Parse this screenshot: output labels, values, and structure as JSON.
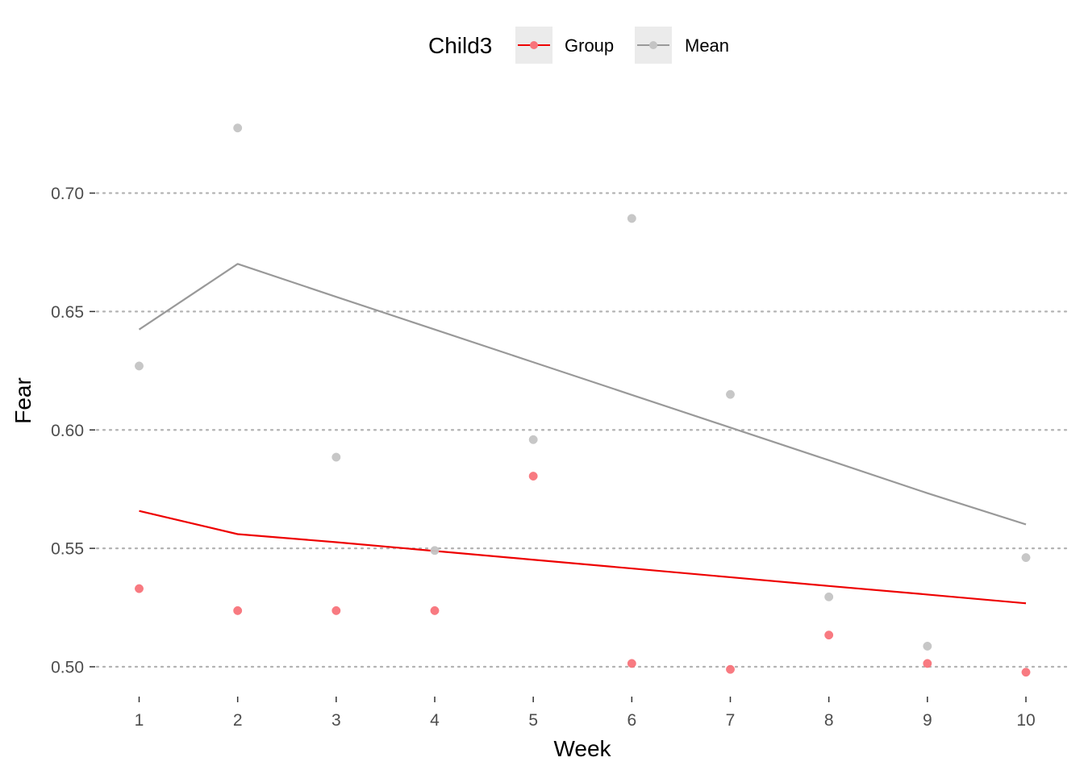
{
  "chart_data": {
    "type": "line",
    "title": "",
    "xlabel": "Week",
    "ylabel": "Fear",
    "x": [
      1,
      2,
      3,
      4,
      5,
      6,
      7,
      8,
      9,
      10
    ],
    "xlim": [
      1,
      10
    ],
    "ylim": [
      0.485,
      0.745
    ],
    "yticks": [
      0.5,
      0.55,
      0.6,
      0.65,
      0.7
    ],
    "ytick_labels": [
      "0.50",
      "0.55",
      "0.60",
      "0.65",
      "0.70"
    ],
    "xtick_labels": [
      "1",
      "2",
      "3",
      "4",
      "5",
      "6",
      "7",
      "8",
      "9",
      "10"
    ],
    "grid": "horizontal-dotted",
    "legend": {
      "title": "Child3",
      "position": "top"
    },
    "series": [
      {
        "name": "Group",
        "color": "#ee0000",
        "point_color": "#f8737a",
        "line": [
          0.5658,
          0.556,
          0.5526,
          0.5489,
          0.5452,
          0.5415,
          0.5378,
          0.5341,
          0.5305,
          0.5268
        ],
        "points": [
          0.533,
          0.5237,
          0.5237,
          0.5237,
          0.5805,
          0.5014,
          0.4989,
          0.5134,
          0.5014,
          0.4977
        ]
      },
      {
        "name": "Mean",
        "color": "#999999",
        "point_color": "#c4c4c4",
        "line": [
          0.6424,
          0.6701,
          0.6562,
          0.6424,
          0.6286,
          0.6148,
          0.601,
          0.5872,
          0.5733,
          0.5601
        ],
        "points": [
          0.627,
          0.7275,
          0.5885,
          0.5491,
          0.5959,
          0.6893,
          0.615,
          0.5295,
          0.5087,
          0.5461
        ]
      }
    ]
  }
}
